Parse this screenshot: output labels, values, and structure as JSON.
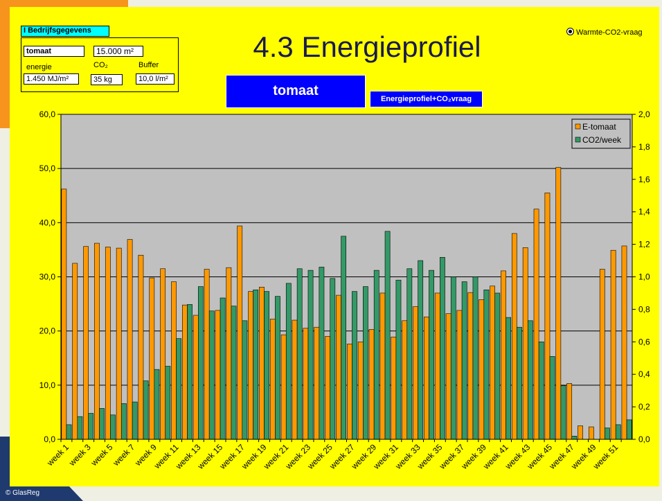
{
  "company": {
    "heading": "I Bedrijfsgegevens",
    "crop": "tomaat",
    "area": "15.000 m²",
    "energy_label": "energie",
    "co2_label": "CO₂",
    "buffer_label": "Buffer",
    "energy": "1.450 MJ/m²",
    "co2": "35 kg",
    "buffer": "10,0 l/m²"
  },
  "crop_button": "tomaat",
  "view_button": "Energieprofiel+CO₂vraag",
  "radio_option": "Warmte-CO2-vraag",
  "copyright": "© GlasReg",
  "chart_data": {
    "type": "bar",
    "title": "4.3 Energieprofiel",
    "categories": [
      "week 1",
      null,
      "week 3",
      null,
      "week 5",
      null,
      "week 7",
      null,
      "week 9",
      null,
      "week 11",
      null,
      "week 13",
      null,
      "week 15",
      null,
      "week 17",
      null,
      "week 19",
      null,
      "week 21",
      null,
      "week 23",
      null,
      "week 25",
      null,
      "week 27",
      null,
      "week 29",
      null,
      "week 31",
      null,
      "week 33",
      null,
      "week 35",
      null,
      "week 37",
      null,
      "week 39",
      null,
      "week 41",
      null,
      "week 43",
      null,
      "week 45",
      null,
      "week 47",
      null,
      "week 49",
      null,
      "week 51",
      null
    ],
    "series": [
      {
        "name": "E-tomaat",
        "color": "#ff9900",
        "values": [
          46.2,
          32.5,
          35.6,
          36.2,
          35.5,
          35.3,
          36.9,
          34.0,
          29.8,
          31.5,
          29.1,
          24.8,
          22.9,
          31.4,
          23.8,
          31.7,
          39.4,
          27.3,
          28.1,
          22.2,
          19.3,
          22.0,
          20.5,
          20.7,
          19.0,
          26.6,
          17.6,
          18.0,
          20.3,
          27.0,
          18.9,
          21.9,
          24.5,
          22.6,
          27.0,
          23.2,
          23.8,
          27.1,
          25.8,
          28.3,
          31.1,
          38.0,
          35.4,
          42.5,
          45.5,
          50.2,
          10.3,
          2.5,
          2.3,
          31.4,
          34.9,
          35.7
        ]
      },
      {
        "name": "CO2/week",
        "color": "#339966",
        "axis": "y2",
        "values": [
          0.09,
          0.14,
          0.16,
          0.19,
          0.15,
          0.22,
          0.23,
          0.36,
          0.43,
          0.45,
          0.62,
          0.83,
          0.94,
          0.79,
          0.87,
          0.82,
          0.73,
          0.92,
          0.91,
          0.88,
          0.96,
          1.05,
          1.04,
          1.06,
          0.99,
          1.25,
          0.91,
          0.94,
          1.04,
          1.28,
          0.98,
          1.05,
          1.1,
          1.04,
          1.12,
          1.0,
          0.97,
          1.0,
          0.92,
          0.9,
          0.75,
          0.69,
          0.73,
          0.6,
          0.51,
          0.33,
          0.02,
          0,
          0,
          0.07,
          0.09,
          0.12
        ]
      }
    ],
    "ylim": [
      0,
      60
    ],
    "yticks": [
      {
        "value": 0,
        "label": "0,0"
      },
      {
        "value": 10,
        "label": "10,0"
      },
      {
        "value": 20,
        "label": "20,0"
      },
      {
        "value": 30,
        "label": "30,0"
      },
      {
        "value": 40,
        "label": "40,0"
      },
      {
        "value": 50,
        "label": "50,0"
      },
      {
        "value": 60,
        "label": "60,0"
      }
    ],
    "y2lim": [
      0,
      2
    ],
    "y2ticks": [
      {
        "value": 0,
        "label": "0,0"
      },
      {
        "value": 0.2,
        "label": "0,2"
      },
      {
        "value": 0.4,
        "label": "0,4"
      },
      {
        "value": 0.6,
        "label": "0,6"
      },
      {
        "value": 0.8,
        "label": "0,8"
      },
      {
        "value": 1.0,
        "label": "1,0"
      },
      {
        "value": 1.2,
        "label": "1,2"
      },
      {
        "value": 1.4,
        "label": "1,4"
      },
      {
        "value": 1.6,
        "label": "1,6"
      },
      {
        "value": 1.8,
        "label": "1,8"
      },
      {
        "value": 2.0,
        "label": "2,0"
      }
    ],
    "grid": true,
    "legend": "top-right"
  }
}
